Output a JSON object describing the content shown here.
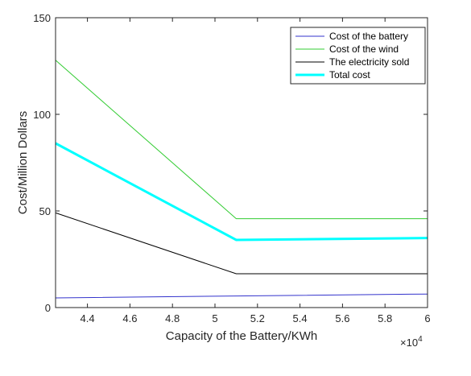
{
  "chart_data": {
    "type": "line",
    "xlabel": "Capacity of the Battery/KWh",
    "ylabel": "Cost/Million Dollars",
    "x_exponent_label": "×10",
    "x_exponent_power": "4",
    "xlim": [
      4.25,
      6.0
    ],
    "ylim": [
      0,
      150
    ],
    "x_ticks": [
      4.4,
      4.6,
      4.8,
      5.0,
      5.2,
      5.4,
      5.6,
      5.8,
      6.0
    ],
    "x_tick_labels": [
      "4.4",
      "4.6",
      "4.8",
      "5",
      "5.2",
      "5.4",
      "5.6",
      "5.8",
      "6"
    ],
    "y_ticks": [
      0,
      50,
      100,
      150
    ],
    "y_tick_labels": [
      "0",
      "50",
      "100",
      "150"
    ],
    "grid": false,
    "legend_position": "top-right",
    "series": [
      {
        "name": "Cost of the battery",
        "color": "#3333cc",
        "width": 1,
        "x": [
          4.25,
          5.1,
          6.0
        ],
        "y": [
          5,
          6,
          7
        ]
      },
      {
        "name": "Cost of the wind",
        "color": "#33cc33",
        "width": 1,
        "x": [
          4.25,
          5.1,
          6.0
        ],
        "y": [
          128,
          46,
          46
        ]
      },
      {
        "name": "The electricity sold",
        "color": "#000000",
        "width": 1,
        "x": [
          4.25,
          5.1,
          6.0
        ],
        "y": [
          49,
          17.5,
          17.5
        ]
      },
      {
        "name": "Total cost",
        "color": "#00ffff",
        "width": 3,
        "x": [
          4.25,
          5.1,
          6.0
        ],
        "y": [
          85,
          35,
          36
        ]
      }
    ]
  }
}
